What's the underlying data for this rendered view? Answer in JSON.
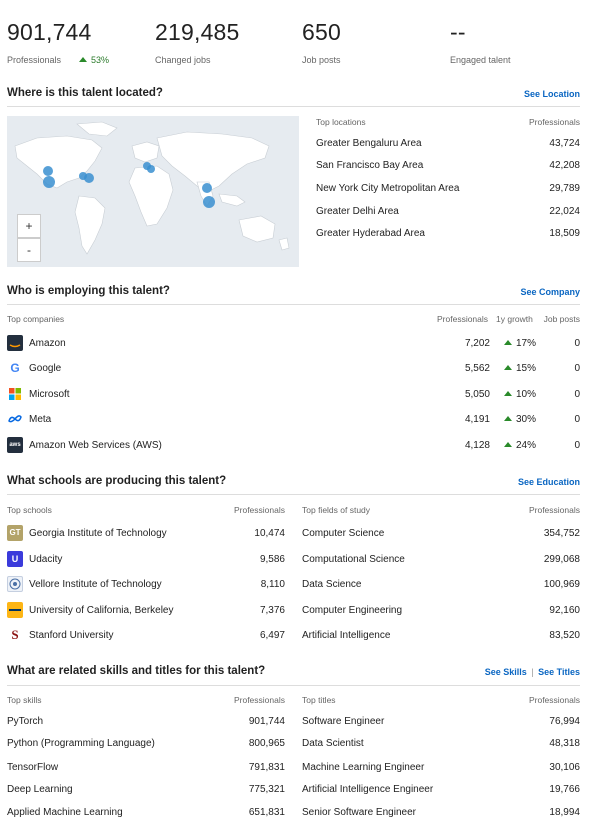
{
  "stats": [
    {
      "value": "901,744",
      "label": "Professionals",
      "growth": "53%"
    },
    {
      "value": "219,485",
      "label": "Changed jobs"
    },
    {
      "value": "650",
      "label": "Job posts"
    },
    {
      "value": "--",
      "label": "Engaged talent"
    }
  ],
  "location": {
    "title": "Where is this talent located?",
    "link": "See Location",
    "header_name": "Top locations",
    "header_value": "Professionals",
    "zoom_in": "+",
    "zoom_out": "-",
    "rows": [
      {
        "name": "Greater Bengaluru Area",
        "value": "43,724"
      },
      {
        "name": "San Francisco Bay Area",
        "value": "42,208"
      },
      {
        "name": "New York City Metropolitan Area",
        "value": "29,789"
      },
      {
        "name": "Greater Delhi Area",
        "value": "22,024"
      },
      {
        "name": "Greater Hyderabad Area",
        "value": "18,509"
      }
    ]
  },
  "companies": {
    "title": "Who is employing this talent?",
    "link": "See Company",
    "header_name": "Top companies",
    "header_prof": "Professionals",
    "header_growth": "1y growth",
    "header_jobs": "Job posts",
    "rows": [
      {
        "name": "Amazon",
        "logo": "amazon-logo",
        "prof": "7,202",
        "growth": "17%",
        "jobs": "0"
      },
      {
        "name": "Google",
        "logo": "google-logo",
        "prof": "5,562",
        "growth": "15%",
        "jobs": "0"
      },
      {
        "name": "Microsoft",
        "logo": "microsoft-logo",
        "prof": "5,050",
        "growth": "10%",
        "jobs": "0"
      },
      {
        "name": "Meta",
        "logo": "meta-logo",
        "prof": "4,191",
        "growth": "30%",
        "jobs": "0"
      },
      {
        "name": "Amazon Web Services (AWS)",
        "logo": "aws-logo",
        "prof": "4,128",
        "growth": "24%",
        "jobs": "0"
      }
    ]
  },
  "education": {
    "title": "What schools are producing this talent?",
    "link": "See Education",
    "schools_header": "Top schools",
    "schools_value_header": "Professionals",
    "fields_header": "Top fields of study",
    "fields_value_header": "Professionals",
    "schools": [
      {
        "name": "Georgia Institute of Technology",
        "value": "10,474",
        "logo": "georgia-tech-logo"
      },
      {
        "name": "Udacity",
        "value": "9,586",
        "logo": "udacity-logo"
      },
      {
        "name": "Vellore Institute of Technology",
        "value": "8,110",
        "logo": "vit-logo"
      },
      {
        "name": "University of California, Berkeley",
        "value": "7,376",
        "logo": "berkeley-logo"
      },
      {
        "name": "Stanford University",
        "value": "6,497",
        "logo": "stanford-logo"
      }
    ],
    "fields": [
      {
        "name": "Computer Science",
        "value": "354,752"
      },
      {
        "name": "Computational Science",
        "value": "299,068"
      },
      {
        "name": "Data Science",
        "value": "100,969"
      },
      {
        "name": "Computer Engineering",
        "value": "92,160"
      },
      {
        "name": "Artificial Intelligence",
        "value": "83,520"
      }
    ]
  },
  "skills": {
    "title": "What are related skills and titles for this talent?",
    "link_skills": "See Skills",
    "link_sep": "|",
    "link_titles": "See Titles",
    "skills_header": "Top skills",
    "skills_value_header": "Professionals",
    "titles_header": "Top titles",
    "titles_value_header": "Professionals",
    "skills": [
      {
        "name": "PyTorch",
        "value": "901,744"
      },
      {
        "name": "Python (Programming Language)",
        "value": "800,965"
      },
      {
        "name": "TensorFlow",
        "value": "791,831"
      },
      {
        "name": "Deep Learning",
        "value": "775,321"
      },
      {
        "name": "Applied Machine Learning",
        "value": "651,831"
      }
    ],
    "titles": [
      {
        "name": "Software Engineer",
        "value": "76,994"
      },
      {
        "name": "Data Scientist",
        "value": "48,318"
      },
      {
        "name": "Machine Learning Engineer",
        "value": "30,106"
      },
      {
        "name": "Artificial Intelligence Engineer",
        "value": "19,766"
      },
      {
        "name": "Senior Software Engineer",
        "value": "18,994"
      }
    ]
  },
  "colors": {
    "accent": "#0a66c2",
    "growth": "#2a8a2a",
    "map_ocean": "#e6ebf0",
    "map_land": "#ffffff",
    "map_dot": "#3a8fd0"
  }
}
